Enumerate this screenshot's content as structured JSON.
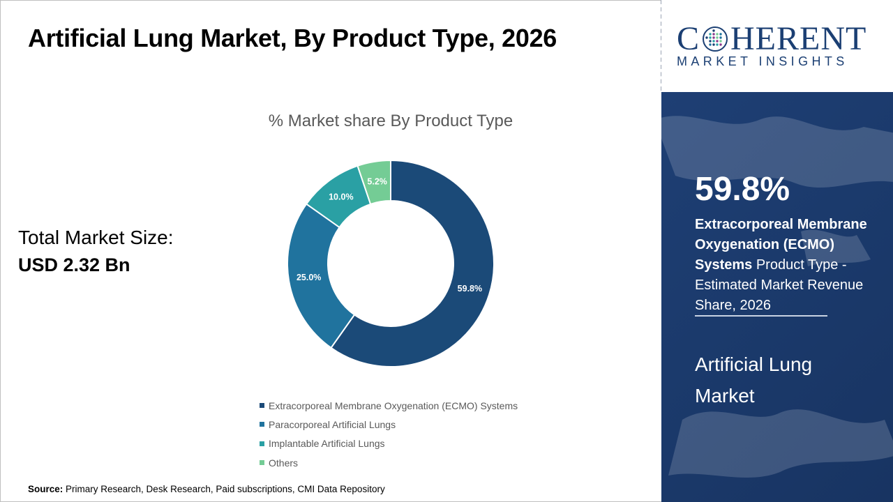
{
  "title": "Artificial Lung Market, By Product Type, 2026",
  "total_market": {
    "label": "Total Market Size:",
    "value": "USD 2.32 Bn"
  },
  "source": {
    "label": "Source:",
    "text": "Primary Research, Desk Research, Paid subscriptions, CMI Data Repository"
  },
  "logo": {
    "main_left": "C",
    "main_right": "HERENT",
    "sub": "MARKET INSIGHTS"
  },
  "highlight": {
    "value": "59.8%",
    "segment_bold": "Extracorporeal Membrane Oxygenation (ECMO) Systems",
    "segment_rest": " Product Type - Estimated Market Revenue Share, 2026",
    "market_name": "Artificial Lung Market"
  },
  "colors": {
    "ecmo": "#1b4a78",
    "paracorporeal": "#20739e",
    "implantable": "#2aa0a4",
    "others": "#74cc95",
    "side_panel": "#1b3a6c",
    "brand": "#1b3f73"
  },
  "chart_data": {
    "type": "pie",
    "variant": "donut",
    "title": "% Market share By Product Type",
    "categories": [
      "Extracorporeal Membrane Oxygenation (ECMO) Systems",
      "Paracorporeal Artificial Lungs",
      "Implantable Artificial Lungs",
      "Others"
    ],
    "values": [
      59.8,
      25.0,
      10.0,
      5.2
    ],
    "labels": [
      "59.8%",
      "25.0%",
      "10.0%",
      "5.2%"
    ],
    "unit": "%",
    "colors": [
      "#1b4a78",
      "#20739e",
      "#2aa0a4",
      "#74cc95"
    ],
    "legend_position": "bottom",
    "start": "12 o'clock, clockwise"
  }
}
